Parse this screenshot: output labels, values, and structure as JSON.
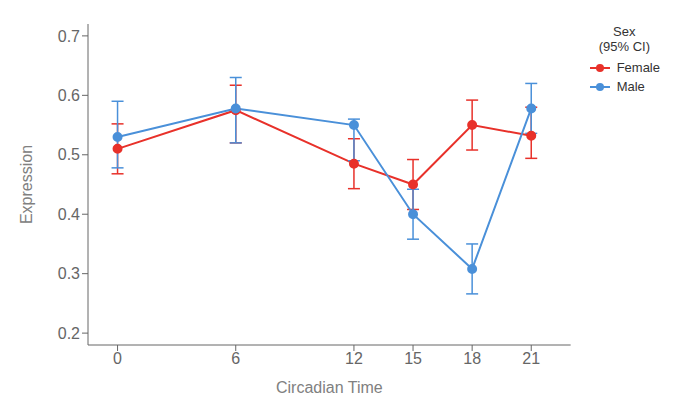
{
  "chart_data": {
    "type": "line",
    "x_label": "Circadian Time",
    "y_label": "Expression",
    "legend_title": "Sex\n(95% CI)",
    "legend": "right",
    "grid": false,
    "x": [
      0,
      6,
      12,
      15,
      18,
      21
    ],
    "xlim": [
      -1.5,
      23
    ],
    "xticks": [
      0,
      6,
      12,
      15,
      18,
      21
    ],
    "ylim": [
      0.18,
      0.72
    ],
    "yticks": [
      0.2,
      0.3,
      0.4,
      0.5,
      0.6,
      0.7
    ],
    "series": [
      {
        "name": "Female",
        "color": "#E8312A",
        "marker": "circle",
        "line_style": "solid",
        "values": [
          0.51,
          0.575,
          0.485,
          0.45,
          0.55,
          0.532
        ],
        "error_lo": [
          0.042,
          0.055,
          0.042,
          0.042,
          0.042,
          0.038
        ],
        "error_hi": [
          0.042,
          0.042,
          0.042,
          0.042,
          0.042,
          0.048
        ]
      },
      {
        "name": "Male",
        "color": "#4A90D9",
        "marker": "circle",
        "line_style": "solid",
        "values": [
          0.53,
          0.578,
          0.55,
          0.4,
          0.308,
          0.578
        ],
        "error_lo": [
          0.052,
          0.058,
          0.06,
          0.042,
          0.042,
          0.042
        ],
        "error_hi": [
          0.06,
          0.052,
          0.01,
          0.042,
          0.042,
          0.042
        ]
      }
    ]
  }
}
